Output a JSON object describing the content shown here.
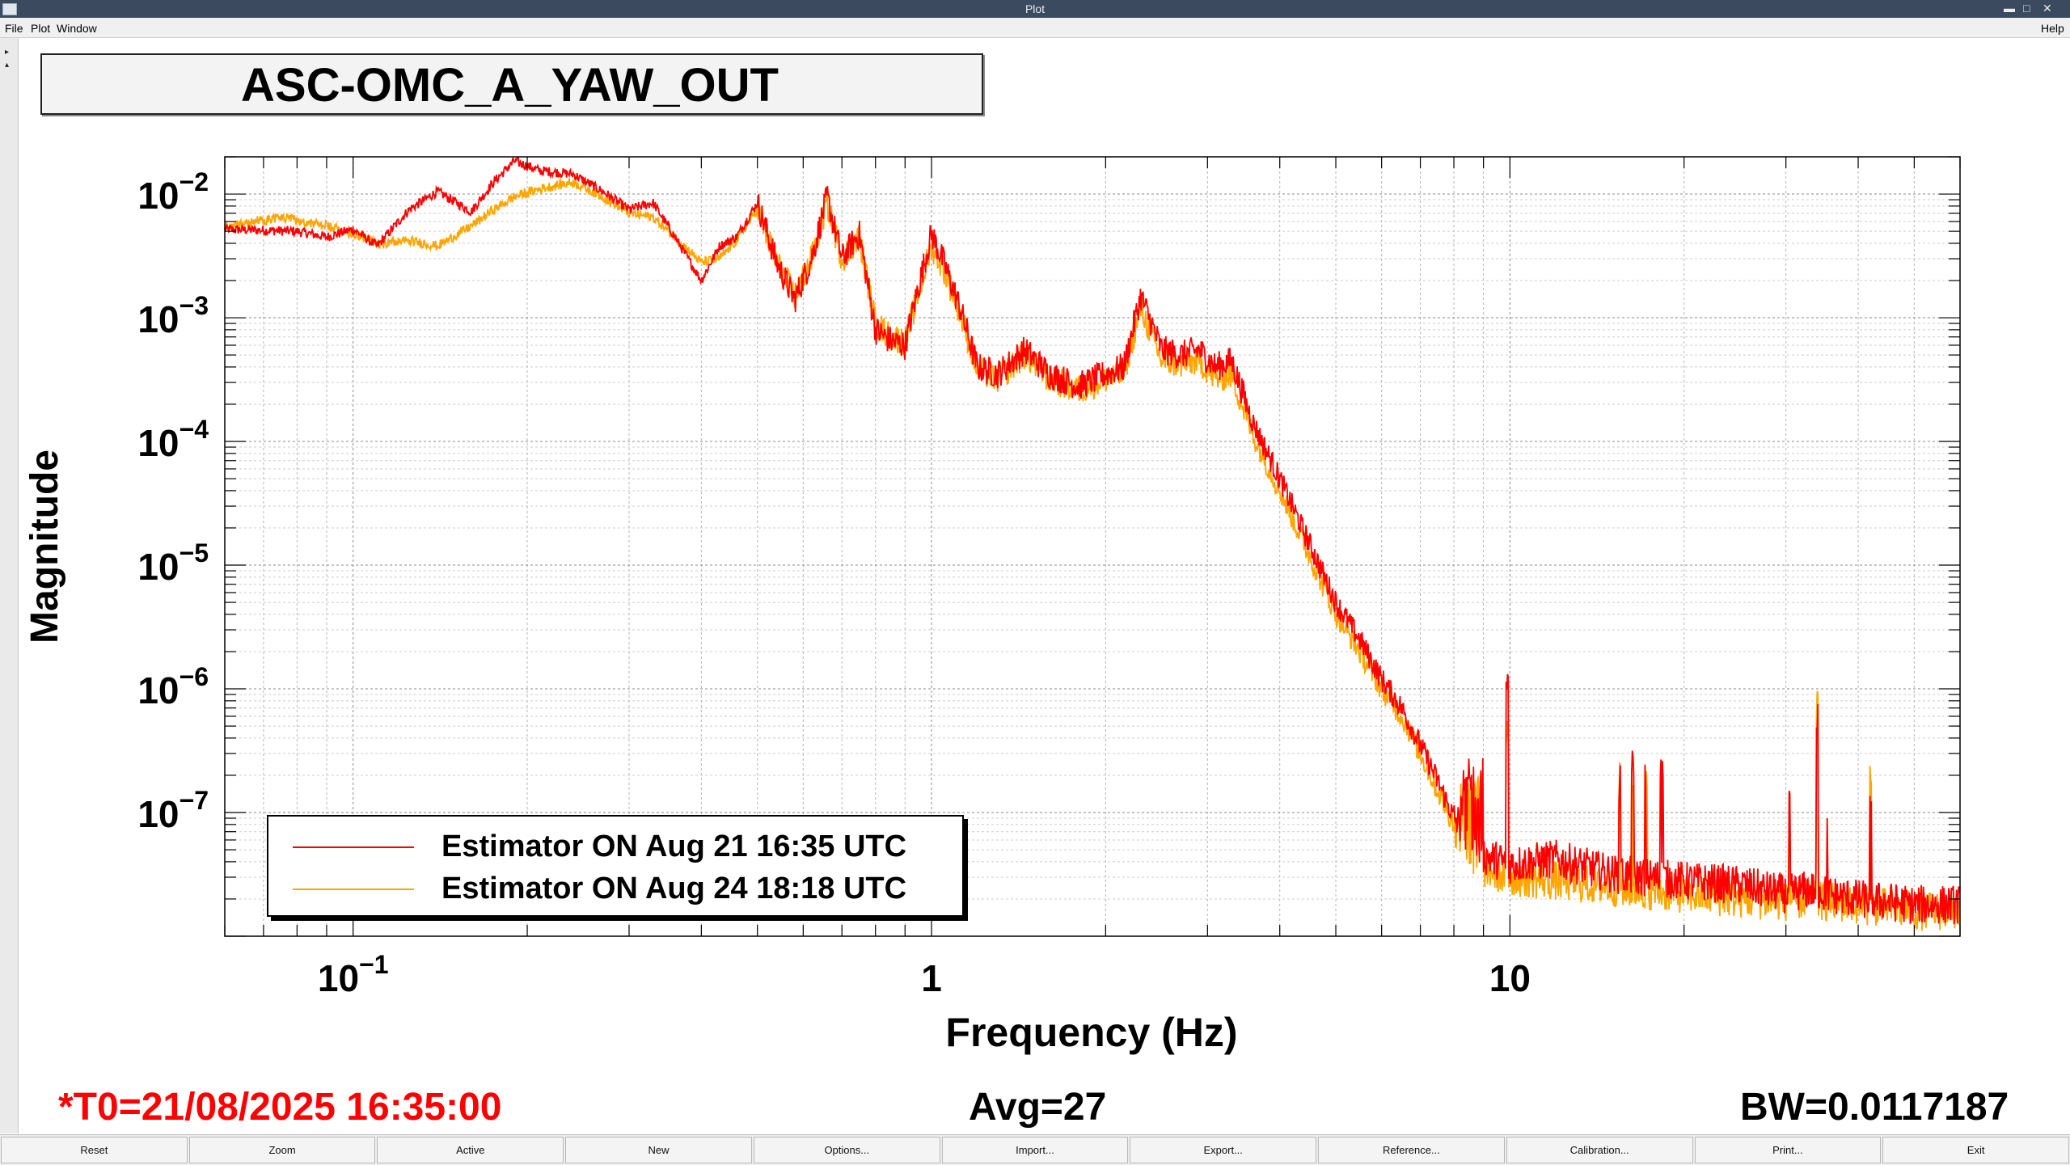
{
  "window": {
    "title": "Plot"
  },
  "menu": {
    "file": "File",
    "plot": "Plot",
    "window": "Window",
    "help": "Help"
  },
  "plot_title": "ASC-OMC_A_YAW_OUT",
  "status": {
    "t0": "*T0=21/08/2025 16:35:00",
    "avg": "Avg=27",
    "bw": "BW=0.0117187",
    "t0_color": "#ff0000"
  },
  "buttons": [
    "Reset",
    "Zoom",
    "Active",
    "New",
    "Options...",
    "Import...",
    "Export...",
    "Reference...",
    "Calibration...",
    "Print...",
    "Exit"
  ],
  "chart_data": {
    "type": "line",
    "xlabel": "Frequency (Hz)",
    "ylabel": "Magnitude",
    "xscale": "log",
    "yscale": "log",
    "xlim": [
      0.06,
      60
    ],
    "ylim": [
      1e-08,
      0.02
    ],
    "grid": true,
    "legend_position": "bottom-left",
    "x_ticks": [
      {
        "value": 0.1,
        "base": "10",
        "exp": "−1"
      },
      {
        "value": 1,
        "base": "1",
        "exp": ""
      },
      {
        "value": 10,
        "base": "10",
        "exp": ""
      }
    ],
    "y_ticks": [
      {
        "value": 0.01,
        "base": "10",
        "exp": "−2"
      },
      {
        "value": 0.001,
        "base": "10",
        "exp": "−3"
      },
      {
        "value": 0.0001,
        "base": "10",
        "exp": "−4"
      },
      {
        "value": 1e-05,
        "base": "10",
        "exp": "−5"
      },
      {
        "value": 1e-06,
        "base": "10",
        "exp": "−6"
      },
      {
        "value": 1e-07,
        "base": "10",
        "exp": "−7"
      }
    ],
    "series": [
      {
        "name": "Estimator ON Aug 21 16:35 UTC",
        "color": "#ff0000",
        "x": [
          0.06,
          0.08,
          0.09,
          0.1,
          0.11,
          0.125,
          0.14,
          0.16,
          0.175,
          0.19,
          0.21,
          0.24,
          0.27,
          0.3,
          0.33,
          0.36,
          0.4,
          0.43,
          0.46,
          0.5,
          0.54,
          0.58,
          0.62,
          0.66,
          0.7,
          0.75,
          0.8,
          0.85,
          0.9,
          0.95,
          1.0,
          1.05,
          1.12,
          1.2,
          1.3,
          1.45,
          1.6,
          1.8,
          2.0,
          2.15,
          2.3,
          2.5,
          2.7,
          2.9,
          3.1,
          3.3,
          3.6,
          4.0,
          4.5,
          5.0,
          5.5,
          6.0,
          6.5,
          7.0,
          7.5,
          8.0,
          8.5,
          9.0,
          10.0,
          12.0,
          15.0,
          20.0,
          25.0,
          30.0,
          33.0,
          35.0,
          40.0,
          45.0,
          50.0,
          60.0
        ],
        "y": [
          0.0052,
          0.005,
          0.0045,
          0.0052,
          0.0038,
          0.0075,
          0.0105,
          0.0072,
          0.0125,
          0.0185,
          0.0155,
          0.0145,
          0.0105,
          0.0075,
          0.0085,
          0.0045,
          0.002,
          0.0038,
          0.0045,
          0.0085,
          0.0028,
          0.0014,
          0.003,
          0.0095,
          0.003,
          0.0048,
          0.0008,
          0.00065,
          0.0006,
          0.0018,
          0.0048,
          0.0028,
          0.0012,
          0.0004,
          0.00035,
          0.00055,
          0.00035,
          0.00028,
          0.00035,
          0.0004,
          0.0015,
          0.00055,
          0.0005,
          0.00055,
          0.0004,
          0.00045,
          0.00014,
          5e-05,
          1.5e-05,
          5e-06,
          2.5e-06,
          1.2e-06,
          7e-07,
          3.5e-07,
          1.8e-07,
          9e-08,
          6.5e-08,
          4.5e-08,
          3.8e-08,
          4.2e-08,
          3.2e-08,
          2.8e-08,
          2.6e-08,
          2.2e-08,
          2.4e-08,
          2.2e-08,
          2e-08,
          1.9e-08,
          1.8e-08,
          1.8e-08
        ]
      },
      {
        "name": "Estimator ON Aug 24 18:18 UTC",
        "color": "#ffa500",
        "x": [
          0.06,
          0.075,
          0.09,
          0.1,
          0.11,
          0.125,
          0.14,
          0.16,
          0.175,
          0.19,
          0.21,
          0.24,
          0.27,
          0.3,
          0.33,
          0.36,
          0.4,
          0.43,
          0.46,
          0.5,
          0.54,
          0.58,
          0.62,
          0.66,
          0.7,
          0.75,
          0.8,
          0.85,
          0.9,
          0.95,
          1.0,
          1.05,
          1.12,
          1.2,
          1.3,
          1.45,
          1.6,
          1.8,
          2.0,
          2.15,
          2.3,
          2.5,
          2.7,
          2.9,
          3.1,
          3.3,
          3.6,
          4.0,
          4.5,
          5.0,
          5.5,
          6.0,
          6.5,
          7.0,
          7.5,
          8.0,
          8.5,
          9.0,
          10.0,
          12.0,
          15.0,
          20.0,
          25.0,
          30.0,
          33.0,
          35.0,
          40.0,
          45.0,
          50.0,
          60.0
        ],
        "y": [
          0.0055,
          0.0065,
          0.0055,
          0.0048,
          0.004,
          0.0042,
          0.0038,
          0.0055,
          0.0075,
          0.0095,
          0.011,
          0.0125,
          0.0095,
          0.007,
          0.0065,
          0.0045,
          0.0028,
          0.003,
          0.0042,
          0.0075,
          0.0028,
          0.0015,
          0.003,
          0.0085,
          0.003,
          0.0045,
          0.0009,
          0.0007,
          0.00065,
          0.0016,
          0.0038,
          0.0025,
          0.0011,
          0.00038,
          0.00032,
          0.0005,
          0.00032,
          0.00026,
          0.00032,
          0.00035,
          0.0012,
          0.00045,
          0.00042,
          0.00045,
          0.00032,
          0.00035,
          0.00011,
          4e-05,
          1.2e-05,
          4e-06,
          2e-06,
          1e-06,
          6e-07,
          3e-07,
          1.5e-07,
          8e-08,
          5e-08,
          3.5e-08,
          3e-08,
          2.8e-08,
          2.5e-08,
          2.2e-08,
          2e-08,
          1.9e-08,
          2e-08,
          1.9e-08,
          1.8e-08,
          1.7e-08,
          1.6e-08,
          1.6e-08
        ]
      }
    ]
  }
}
